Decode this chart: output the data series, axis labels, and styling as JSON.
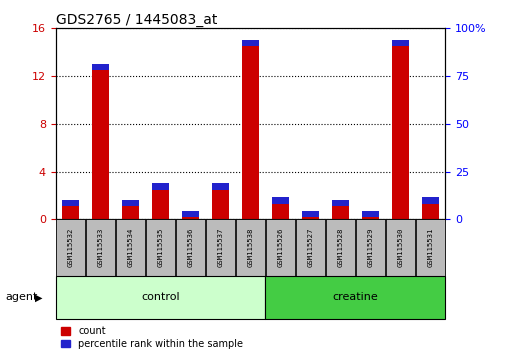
{
  "title": "GDS2765 / 1445083_at",
  "samples": [
    "GSM115532",
    "GSM115533",
    "GSM115534",
    "GSM115535",
    "GSM115536",
    "GSM115537",
    "GSM115538",
    "GSM115526",
    "GSM115527",
    "GSM115528",
    "GSM115529",
    "GSM115530",
    "GSM115531"
  ],
  "count_values": [
    1.6,
    13.0,
    1.6,
    3.0,
    0.7,
    3.0,
    15.0,
    1.8,
    0.7,
    1.6,
    0.7,
    15.0,
    1.8
  ],
  "percentile_values": [
    0.5,
    0.5,
    0.5,
    0.5,
    0.5,
    0.5,
    0.5,
    0.5,
    0.5,
    0.5,
    0.5,
    0.5,
    0.5
  ],
  "count_color": "#cc0000",
  "percentile_color": "#2222cc",
  "ylim_left": [
    0,
    16
  ],
  "ylim_right": [
    0,
    100
  ],
  "yticks_left": [
    0,
    4,
    8,
    12,
    16
  ],
  "yticks_right": [
    0,
    25,
    50,
    75,
    100
  ],
  "groups": [
    {
      "label": "control",
      "start": 0,
      "end": 7,
      "color": "#ccffcc"
    },
    {
      "label": "creatine",
      "start": 7,
      "end": 13,
      "color": "#44cc44"
    }
  ],
  "group_label": "agent",
  "legend_items": [
    {
      "label": "count",
      "color": "#cc0000"
    },
    {
      "label": "percentile rank within the sample",
      "color": "#2222cc"
    }
  ],
  "background_color": "#ffffff",
  "tick_label_box_color": "#bbbbbb",
  "title_color": "#000000"
}
